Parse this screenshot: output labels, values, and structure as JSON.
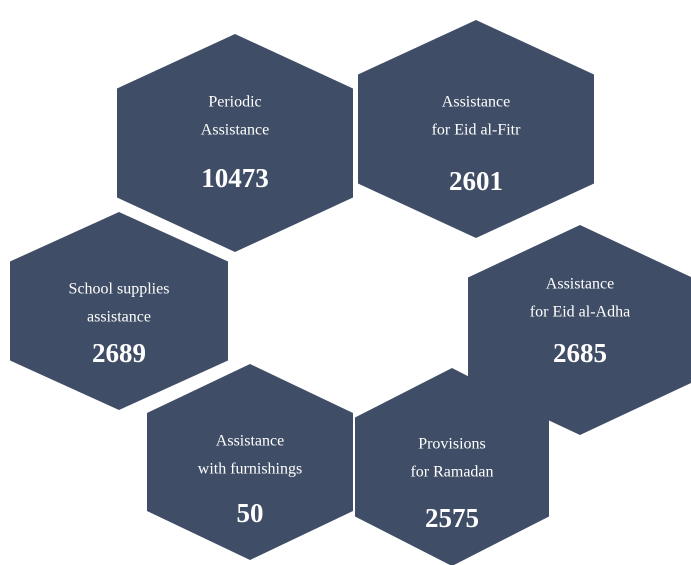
{
  "items": [
    {
      "label": [
        "Periodic",
        "Assistance"
      ],
      "value": 10473
    },
    {
      "label": [
        "Assistance",
        "for Eid al-Fitr"
      ],
      "value": 2601
    },
    {
      "label": [
        "School supplies",
        "assistance"
      ],
      "value": 2689
    },
    {
      "label": [
        "Assistance",
        "for Eid al-Adha"
      ],
      "value": 2685
    },
    {
      "label": [
        "Assistance",
        "with furnishings"
      ],
      "value": 50
    },
    {
      "label": [
        "Provisions",
        "for Ramadan"
      ],
      "value": 2575
    }
  ]
}
